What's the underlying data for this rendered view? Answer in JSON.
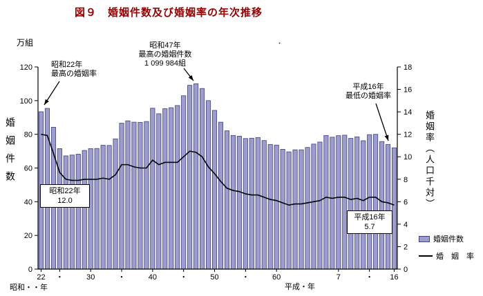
{
  "title": "図９　婚姻件数及び婚姻率の年次推移",
  "stray_dot": "・",
  "left_axis": {
    "unit_label": "万組",
    "axis_label": "婚姻件数",
    "ticks": [
      "120",
      "100",
      "80",
      "60",
      "40",
      "20",
      "0"
    ]
  },
  "right_axis": {
    "axis_label": "婚姻率（人口千対）",
    "ticks": [
      "18",
      "16",
      "14",
      "12",
      "10",
      "8",
      "6",
      "4",
      "2",
      "0"
    ]
  },
  "x_axis": {
    "era_label_left": "昭和・・年",
    "era_label_right": "平成・年",
    "ticks": [
      {
        "year": 1947,
        "label": "22"
      },
      {
        "year": 1950,
        "label": "・"
      },
      {
        "year": 1955,
        "label": "30"
      },
      {
        "year": 1960,
        "label": "・"
      },
      {
        "year": 1965,
        "label": "40"
      },
      {
        "year": 1970,
        "label": "・"
      },
      {
        "year": 1975,
        "label": "50"
      },
      {
        "year": 1980,
        "label": "・"
      },
      {
        "year": 1985,
        "label": "60"
      },
      {
        "year": 1995,
        "label": "7"
      },
      {
        "year": 2000,
        "label": "・"
      },
      {
        "year": 2004,
        "label": "16"
      }
    ]
  },
  "annotations": {
    "highest_rate": {
      "line1": "昭和22年",
      "line2": "最高の婚姻率"
    },
    "highest_count": {
      "line1": "昭和47年",
      "line2": "最高の婚姻件数",
      "line3": "1 099 984組"
    },
    "lowest_rate": {
      "line1": "平成16年",
      "line2": "最低の婚姻率"
    },
    "rate_start_box": {
      "line1": "昭和22年",
      "line2": "12.0"
    },
    "rate_end_box": {
      "line1": "平成16年",
      "line2": "5.7"
    }
  },
  "legend": {
    "bar_label": "婚姻件数",
    "line_label": "婚　姻　率"
  },
  "colors": {
    "bar_fill": "#9C9CCE",
    "bar_stroke": "#404080",
    "line": "#000000",
    "title": "#990000"
  },
  "chart_data": {
    "type": "bar",
    "combo": "bar+line",
    "title": "図９　婚姻件数及び婚姻率の年次推移",
    "x_years": [
      1947,
      1948,
      1949,
      1950,
      1951,
      1952,
      1953,
      1954,
      1955,
      1956,
      1957,
      1958,
      1959,
      1960,
      1961,
      1962,
      1963,
      1964,
      1965,
      1966,
      1967,
      1968,
      1969,
      1970,
      1971,
      1972,
      1973,
      1974,
      1975,
      1976,
      1977,
      1978,
      1979,
      1980,
      1981,
      1982,
      1983,
      1984,
      1985,
      1986,
      1987,
      1988,
      1989,
      1990,
      1991,
      1992,
      1993,
      1994,
      1995,
      1996,
      1997,
      1998,
      1999,
      2000,
      2001,
      2002,
      2003,
      2004
    ],
    "series": [
      {
        "name": "婚姻件数",
        "type": "bar",
        "axis": "left",
        "unit": "万組",
        "values": [
          93.4,
          95.4,
          84.2,
          71.5,
          67.2,
          67.7,
          68.2,
          70.4,
          71.5,
          71.6,
          73.5,
          73.4,
          77.3,
          86.6,
          88.0,
          87.2,
          87.1,
          87.6,
          95.5,
          92.2,
          95.2,
          95.8,
          97.1,
          102.9,
          109.1,
          110.0,
          107.2,
          100.0,
          94.2,
          87.2,
          82.1,
          79.3,
          78.9,
          77.5,
          77.7,
          78.1,
          76.3,
          74.0,
          73.6,
          71.1,
          69.6,
          70.8,
          70.8,
          72.2,
          74.2,
          75.4,
          79.3,
          78.3,
          79.2,
          79.5,
          77.6,
          78.5,
          76.2,
          79.8,
          80.0,
          75.7,
          74.0,
          72.0
        ]
      },
      {
        "name": "婚姻率",
        "type": "line",
        "axis": "right",
        "unit": "人口千対",
        "values": [
          12.0,
          11.9,
          10.3,
          8.6,
          8.0,
          7.9,
          7.9,
          8.0,
          8.0,
          8.0,
          8.1,
          8.0,
          8.4,
          9.3,
          9.3,
          9.1,
          9.0,
          9.0,
          9.7,
          9.3,
          9.5,
          9.5,
          9.5,
          10.0,
          10.5,
          10.4,
          10.0,
          9.1,
          8.5,
          7.8,
          7.2,
          7.0,
          6.9,
          6.7,
          6.6,
          6.6,
          6.4,
          6.2,
          6.1,
          5.9,
          5.7,
          5.8,
          5.8,
          5.9,
          6.0,
          6.1,
          6.4,
          6.3,
          6.4,
          6.4,
          6.2,
          6.3,
          6.1,
          6.4,
          6.4,
          6.0,
          5.9,
          5.7
        ]
      }
    ],
    "left_ylim": [
      0,
      120
    ],
    "right_ylim": [
      0,
      18
    ],
    "left_axis_unit": "万組",
    "right_axis_label": "婚姻率（人口千対）",
    "highest_count_annotation": "昭和47年 最高の婚姻件数 1 099 984組",
    "highest_rate_annotation": "昭和22年 最高の婚姻率 12.0",
    "lowest_rate_annotation": "平成16年 最低の婚姻率 5.7",
    "grid": false,
    "legend_position": "right-bottom"
  }
}
